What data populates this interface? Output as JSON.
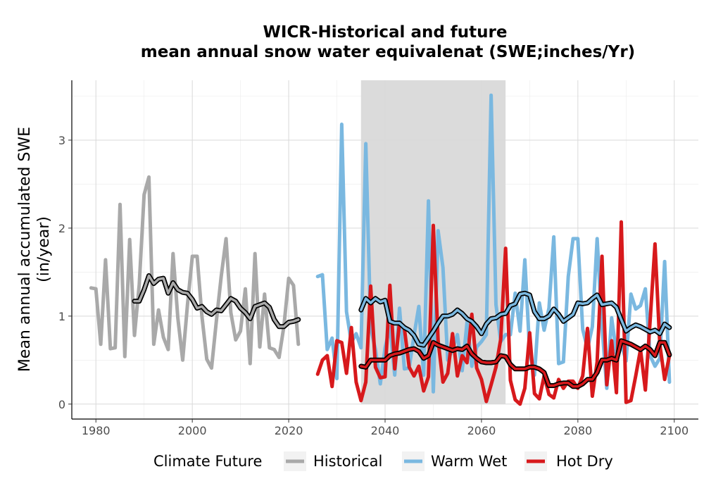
{
  "chart_data": {
    "type": "line",
    "title": [
      "WICR-Historical and future",
      "mean annual snow water equivalenat (SWE;inches/Yr)"
    ],
    "xlabel": "",
    "ylabel": [
      "Mean annual accumulated SWE",
      "(in/year)"
    ],
    "xlim": [
      1975,
      2105
    ],
    "ylim": [
      -0.17,
      3.68
    ],
    "xticks": [
      1980,
      2000,
      2020,
      2040,
      2060,
      2080,
      2100
    ],
    "yticks": [
      0,
      1,
      2,
      3
    ],
    "grid": true,
    "shaded_period": [
      2035,
      2065
    ],
    "legend": {
      "title": "Climate Future",
      "position": "bottom",
      "entries": [
        {
          "label": "Historical",
          "color": "#a9a9a9"
        },
        {
          "label": "Warm Wet",
          "color": "#7ab8e0"
        },
        {
          "label": "Hot Dry",
          "color": "#d7191c"
        }
      ]
    },
    "series": [
      {
        "name": "Historical",
        "color": "#a9a9a9",
        "x": [
          1979,
          1980,
          1981,
          1982,
          1983,
          1984,
          1985,
          1986,
          1987,
          1988,
          1989,
          1990,
          1991,
          1992,
          1993,
          1994,
          1995,
          1996,
          1997,
          1998,
          1999,
          2000,
          2001,
          2002,
          2003,
          2004,
          2005,
          2006,
          2007,
          2008,
          2009,
          2010,
          2011,
          2012,
          2013,
          2014,
          2015,
          2016,
          2017,
          2018,
          2019,
          2020,
          2021,
          2022
        ],
        "y": [
          1.32,
          1.31,
          0.68,
          1.64,
          0.63,
          0.64,
          2.27,
          0.54,
          1.87,
          0.78,
          1.36,
          2.38,
          2.58,
          0.68,
          1.07,
          0.76,
          0.62,
          1.71,
          0.98,
          0.5,
          1.13,
          1.68,
          1.68,
          1.0,
          0.51,
          0.41,
          0.95,
          1.45,
          1.88,
          1.04,
          0.73,
          0.83,
          1.31,
          0.46,
          1.71,
          0.65,
          1.25,
          0.64,
          0.62,
          0.53,
          0.88,
          1.43,
          1.35,
          0.68
        ]
      },
      {
        "name": "Warm Wet",
        "color": "#7ab8e0",
        "x": [
          2026,
          2027,
          2028,
          2029,
          2030,
          2031,
          2032,
          2033,
          2034,
          2035,
          2036,
          2037,
          2038,
          2039,
          2040,
          2041,
          2042,
          2043,
          2044,
          2045,
          2046,
          2047,
          2048,
          2049,
          2050,
          2051,
          2052,
          2053,
          2054,
          2055,
          2056,
          2057,
          2058,
          2059,
          2060,
          2061,
          2062,
          2063,
          2064,
          2065,
          2066,
          2067,
          2068,
          2069,
          2070,
          2071,
          2072,
          2073,
          2074,
          2075,
          2076,
          2077,
          2078,
          2079,
          2080,
          2081,
          2082,
          2083,
          2084,
          2085,
          2086,
          2087,
          2088,
          2089,
          2090,
          2091,
          2092,
          2093,
          2094,
          2095,
          2096,
          2097,
          2098,
          2099
        ],
        "y": [
          1.45,
          1.47,
          0.62,
          0.75,
          0.29,
          3.18,
          1.05,
          0.7,
          0.8,
          0.64,
          2.96,
          0.87,
          0.62,
          0.23,
          0.64,
          0.88,
          0.33,
          1.09,
          0.4,
          0.41,
          0.78,
          1.11,
          0.33,
          2.31,
          0.14,
          1.97,
          1.55,
          0.5,
          0.62,
          0.79,
          0.38,
          0.93,
          0.43,
          0.65,
          0.71,
          0.79,
          3.51,
          1.13,
          0.71,
          0.79,
          0.79,
          1.26,
          0.83,
          1.64,
          0.59,
          0.33,
          1.15,
          0.84,
          1.09,
          1.9,
          0.46,
          0.48,
          1.45,
          1.88,
          1.88,
          0.85,
          0.63,
          0.88,
          1.88,
          0.89,
          0.18,
          0.98,
          0.58,
          0.69,
          0.49,
          1.25,
          1.08,
          1.12,
          1.31,
          0.55,
          0.43,
          0.52,
          1.62,
          0.25
        ]
      },
      {
        "name": "Warm Wet (smoothed)",
        "color": "#7ab8e0",
        "smoothed": true,
        "x": [
          2035,
          2036,
          2037,
          2038,
          2039,
          2040,
          2041,
          2042,
          2043,
          2044,
          2045,
          2046,
          2047,
          2048,
          2049,
          2050,
          2051,
          2052,
          2053,
          2054,
          2055,
          2056,
          2057,
          2058,
          2059,
          2060,
          2061,
          2062,
          2063,
          2064,
          2065,
          2066,
          2067,
          2068,
          2069,
          2070,
          2071,
          2072,
          2073,
          2074,
          2075,
          2076,
          2077,
          2078,
          2079,
          2080,
          2081,
          2082,
          2083,
          2084,
          2085,
          2086,
          2087,
          2088,
          2089,
          2090,
          2091,
          2092,
          2093,
          2094,
          2095,
          2096,
          2097,
          2098,
          2099
        ],
        "y": [
          1.07,
          1.2,
          1.15,
          1.2,
          1.16,
          1.18,
          0.94,
          0.92,
          0.92,
          0.87,
          0.84,
          0.78,
          0.68,
          0.67,
          0.75,
          0.83,
          0.92,
          1.0,
          1.0,
          1.02,
          1.07,
          1.03,
          0.97,
          0.94,
          0.88,
          0.8,
          0.91,
          0.97,
          0.98,
          1.02,
          1.03,
          1.12,
          1.14,
          1.25,
          1.26,
          1.24,
          1.05,
          0.97,
          0.97,
          1.0,
          1.08,
          1.02,
          0.94,
          0.98,
          1.02,
          1.15,
          1.14,
          1.15,
          1.2,
          1.24,
          1.13,
          1.14,
          1.15,
          1.1,
          0.96,
          0.83,
          0.87,
          0.9,
          0.88,
          0.85,
          0.82,
          0.84,
          0.8,
          0.91,
          0.87
        ]
      },
      {
        "name": "Hot Dry",
        "color": "#d7191c",
        "x": [
          2026,
          2027,
          2028,
          2029,
          2030,
          2031,
          2032,
          2033,
          2034,
          2035,
          2036,
          2037,
          2038,
          2039,
          2040,
          2041,
          2042,
          2043,
          2044,
          2045,
          2046,
          2047,
          2048,
          2049,
          2050,
          2051,
          2052,
          2053,
          2054,
          2055,
          2056,
          2057,
          2058,
          2059,
          2060,
          2061,
          2062,
          2063,
          2064,
          2065,
          2066,
          2067,
          2068,
          2069,
          2070,
          2071,
          2072,
          2073,
          2074,
          2075,
          2076,
          2077,
          2078,
          2079,
          2080,
          2081,
          2082,
          2083,
          2084,
          2085,
          2086,
          2087,
          2088,
          2089,
          2090,
          2091,
          2092,
          2093,
          2094,
          2095,
          2096,
          2097,
          2098,
          2099
        ],
        "y": [
          0.34,
          0.5,
          0.55,
          0.2,
          0.72,
          0.7,
          0.35,
          0.87,
          0.25,
          0.04,
          0.25,
          1.34,
          0.42,
          0.3,
          0.31,
          1.35,
          0.4,
          0.93,
          0.86,
          0.42,
          0.32,
          0.43,
          0.15,
          0.31,
          2.03,
          0.72,
          0.25,
          0.35,
          0.8,
          0.32,
          0.55,
          0.47,
          1.02,
          0.41,
          0.28,
          0.03,
          0.22,
          0.42,
          0.74,
          1.77,
          0.27,
          0.05,
          0.0,
          0.18,
          0.81,
          0.12,
          0.06,
          0.32,
          0.11,
          0.07,
          0.28,
          0.18,
          0.26,
          0.26,
          0.18,
          0.32,
          0.86,
          0.09,
          0.48,
          1.68,
          0.22,
          0.72,
          0.13,
          2.07,
          0.02,
          0.04,
          0.32,
          0.62,
          0.16,
          0.95,
          1.82,
          0.68,
          0.28,
          0.55
        ]
      },
      {
        "name": "Hot Dry (smoothed)",
        "color": "#d7191c",
        "smoothed": true,
        "x": [
          2035,
          2036,
          2037,
          2038,
          2039,
          2040,
          2041,
          2042,
          2043,
          2044,
          2045,
          2046,
          2047,
          2048,
          2049,
          2050,
          2051,
          2052,
          2053,
          2054,
          2055,
          2056,
          2057,
          2058,
          2059,
          2060,
          2061,
          2062,
          2063,
          2064,
          2065,
          2066,
          2067,
          2068,
          2069,
          2070,
          2071,
          2072,
          2073,
          2074,
          2075,
          2076,
          2077,
          2078,
          2079,
          2080,
          2081,
          2082,
          2083,
          2084,
          2085,
          2086,
          2087,
          2088,
          2089,
          2090,
          2091,
          2092,
          2093,
          2094,
          2095,
          2096,
          2097,
          2098,
          2099
        ],
        "y": [
          0.43,
          0.42,
          0.5,
          0.5,
          0.5,
          0.5,
          0.55,
          0.57,
          0.58,
          0.6,
          0.62,
          0.63,
          0.6,
          0.52,
          0.55,
          0.7,
          0.67,
          0.65,
          0.63,
          0.61,
          0.63,
          0.62,
          0.66,
          0.57,
          0.52,
          0.48,
          0.47,
          0.47,
          0.48,
          0.55,
          0.54,
          0.45,
          0.4,
          0.4,
          0.4,
          0.42,
          0.42,
          0.4,
          0.36,
          0.21,
          0.21,
          0.23,
          0.24,
          0.24,
          0.2,
          0.2,
          0.23,
          0.28,
          0.28,
          0.36,
          0.5,
          0.5,
          0.52,
          0.5,
          0.72,
          0.7,
          0.68,
          0.65,
          0.62,
          0.66,
          0.62,
          0.55,
          0.7,
          0.7,
          0.56
        ]
      },
      {
        "name": "Historical (smoothed)",
        "color": "#a9a9a9",
        "smoothed": true,
        "x": [
          1988,
          1989,
          1990,
          1991,
          1992,
          1993,
          1994,
          1995,
          1996,
          1997,
          1998,
          1999,
          2000,
          2001,
          2002,
          2003,
          2004,
          2005,
          2006,
          2007,
          2008,
          2009,
          2010,
          2011,
          2012,
          2013,
          2014,
          2015,
          2016,
          2017,
          2018,
          2019,
          2020,
          2021,
          2022
        ],
        "y": [
          1.17,
          1.17,
          1.3,
          1.46,
          1.37,
          1.42,
          1.43,
          1.26,
          1.38,
          1.3,
          1.27,
          1.26,
          1.19,
          1.09,
          1.11,
          1.05,
          1.02,
          1.07,
          1.06,
          1.13,
          1.2,
          1.17,
          1.09,
          1.04,
          0.97,
          1.11,
          1.13,
          1.15,
          1.1,
          0.96,
          0.88,
          0.88,
          0.93,
          0.94,
          0.96
        ]
      }
    ]
  }
}
